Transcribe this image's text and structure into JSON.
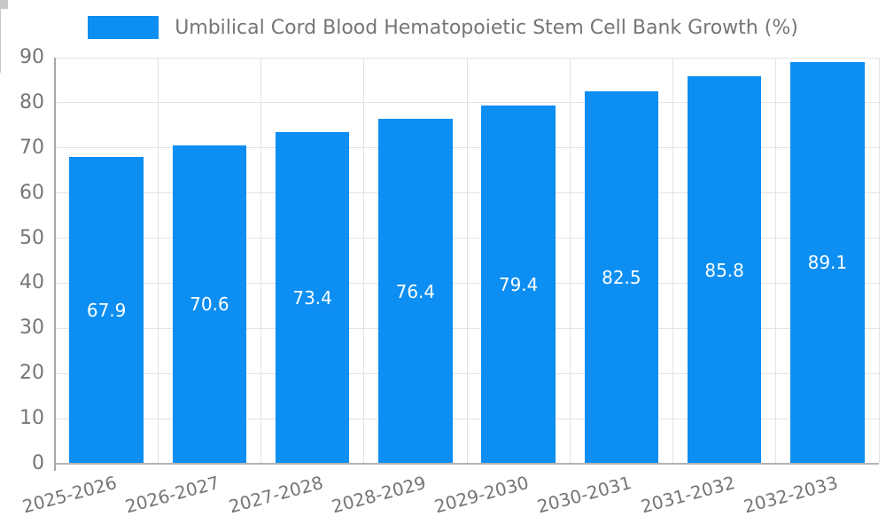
{
  "chart_data": {
    "type": "bar",
    "title": "Umbilical Cord Blood Hematopoietic Stem Cell Bank Growth (%)",
    "legend": {
      "position": "top",
      "entries": [
        "Umbilical Cord Blood Hematopoietic Stem Cell Bank Growth (%)"
      ]
    },
    "categories": [
      "2025-2026",
      "2026-2027",
      "2027-2028",
      "2028-2029",
      "2029-2030",
      "2030-2031",
      "2031-2032",
      "2032-2033"
    ],
    "values": [
      67.9,
      70.6,
      73.4,
      76.4,
      79.4,
      82.5,
      85.8,
      89.1
    ],
    "value_labels": [
      "67.9",
      "70.6",
      "73.4",
      "76.4",
      "79.4",
      "82.5",
      "85.8",
      "89.1"
    ],
    "xlabel": "",
    "ylabel": "",
    "ylim": [
      0,
      90
    ],
    "yticks": [
      0,
      10,
      20,
      30,
      40,
      50,
      60,
      70,
      80,
      90
    ],
    "grid": "horizontal and vertical gridlines on",
    "x_tick_label_rotation_deg": 15,
    "colors": {
      "bar": "#0C8EF2",
      "value_label": "#FFFFFF",
      "text": "#757575",
      "grid": "#E3E3E3",
      "axis": "#A6A6A6",
      "background": "#FFFFFF"
    }
  }
}
